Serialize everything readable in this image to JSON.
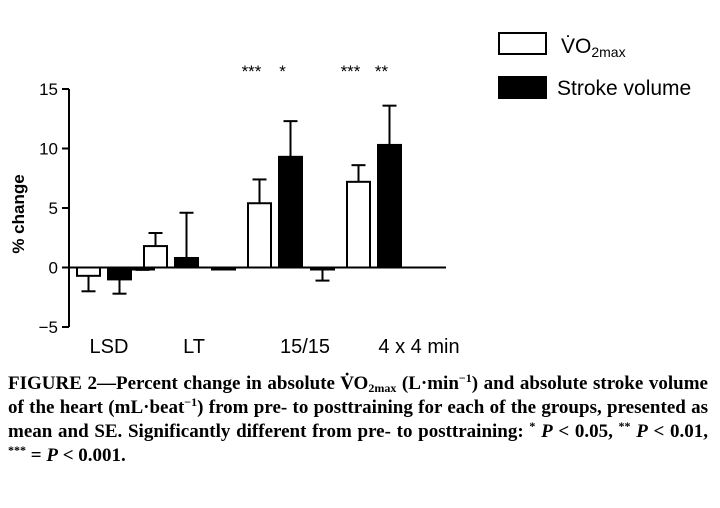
{
  "chart_data": {
    "type": "bar",
    "ylabel": "% change",
    "ylim": [
      -5,
      15
    ],
    "yticks": [
      -5,
      0,
      5,
      10,
      15
    ],
    "ytick_labels": [
      "−5",
      "0",
      "5",
      "10",
      "15"
    ],
    "categories": [
      "LSD",
      "LT",
      "15/15",
      "4 x 4 min"
    ],
    "series": [
      {
        "name": "V̇O2max",
        "label_main": "V̇O",
        "label_sub": "2max",
        "fill": "#ffffff",
        "values": [
          -0.7,
          1.8,
          5.4,
          7.2
        ],
        "errors": [
          1.3,
          1.1,
          2.0,
          1.4
        ]
      },
      {
        "name": "Stroke volume",
        "fill": "#000000",
        "values": [
          -1.0,
          0.8,
          9.3,
          10.3
        ],
        "errors": [
          1.2,
          3.8,
          3.0,
          3.3
        ]
      }
    ],
    "control_bars": [
      {
        "value": -0.1,
        "error": 0.1
      },
      {
        "value": -0.1,
        "error": 0.1
      },
      {
        "value": -0.1,
        "error": 0.0
      },
      {
        "value": -0.1,
        "error": 1.0
      }
    ],
    "significance": [
      {
        "category": "15/15",
        "series": 0,
        "text": "***"
      },
      {
        "category": "15/15",
        "series": 1,
        "text": "*"
      },
      {
        "category": "4 x 4 min",
        "series": 0,
        "text": "***"
      },
      {
        "category": "4 x 4 min",
        "series": 1,
        "text": "**"
      }
    ]
  },
  "caption": {
    "figure_label": "FIGURE 2",
    "t1": "—Percent change in absolute ",
    "vo2": "V̇O",
    "vo2_sub": "2max",
    "t2": " (L·min",
    "exp1": "−1",
    "t3": ") and absolute stroke volume of the heart (mL·beat",
    "exp2": "−1",
    "t4": ") from pre- to posttraining for each of the groups, presented as mean and SE. Significantly different from pre- to posttraining: ",
    "s1": "*",
    "p": "P",
    "t5": " < 0.05, ",
    "s2": "**",
    "t6": " < 0.01, ",
    "s3": "***",
    "t7": " = ",
    "t8": " < 0.001."
  }
}
